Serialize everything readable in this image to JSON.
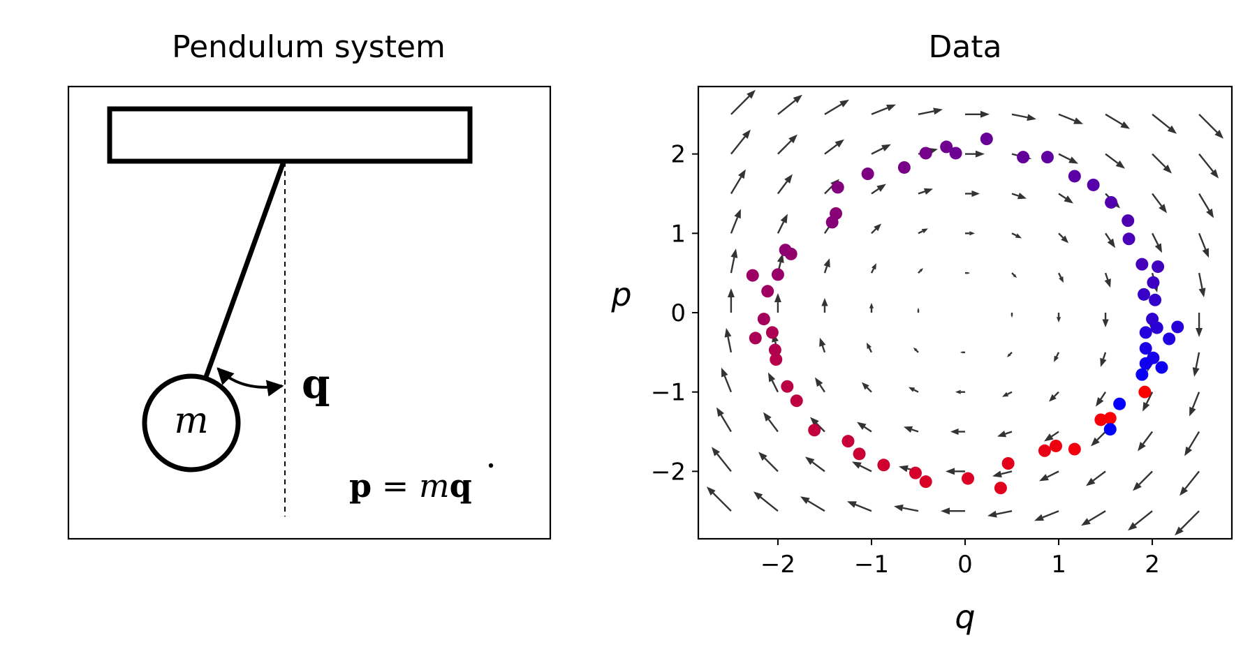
{
  "left_panel": {
    "title": "Pendulum system",
    "mass_label": "m",
    "angle_label": "q",
    "equation": {
      "lhs": "p",
      "eq": " = ",
      "m": "m",
      "q": "q"
    }
  },
  "chart_data": {
    "type": "scatter",
    "title": "Data",
    "xlabel": "q",
    "ylabel": "p",
    "xlim": [
      -2.85,
      2.85
    ],
    "ylim": [
      -2.85,
      2.85
    ],
    "xticks": [
      -2,
      -1,
      0,
      1,
      2
    ],
    "yticks": [
      -2,
      -1,
      0,
      1,
      2
    ],
    "xtick_labels": [
      "−2",
      "−1",
      "0",
      "1",
      "2"
    ],
    "ytick_labels": [
      "−2",
      "−1",
      "0",
      "1",
      "2"
    ],
    "grid": false,
    "colors": {
      "start": "#ff0000",
      "end": "#0000ff",
      "arrow": "#333333"
    },
    "quiver": {
      "description": "Hamiltonian vector field (dq/dt = p, dp/dt = -q) on a 11x11 grid",
      "q": [
        -2.5,
        -2.0,
        -1.5,
        -1.0,
        -0.5,
        0.0,
        0.5,
        1.0,
        1.5,
        2.0,
        2.5
      ],
      "p": [
        -2.5,
        -2.0,
        -1.5,
        -1.0,
        -0.5,
        0.0,
        0.5,
        1.0,
        1.5,
        2.0,
        2.5
      ]
    },
    "points": [
      [
        1.92,
        -1.0,
        0.0
      ],
      [
        1.55,
        -1.33,
        0.03
      ],
      [
        1.45,
        -1.35,
        0.06
      ],
      [
        1.17,
        -1.72,
        0.09
      ],
      [
        0.97,
        -1.68,
        0.12
      ],
      [
        0.85,
        -1.74,
        0.15
      ],
      [
        0.46,
        -1.9,
        0.18
      ],
      [
        0.38,
        -2.21,
        0.21
      ],
      [
        0.03,
        -2.09,
        0.24
      ],
      [
        -0.42,
        -2.13,
        0.27
      ],
      [
        -0.53,
        -2.02,
        0.3
      ],
      [
        -0.87,
        -1.92,
        0.33
      ],
      [
        -1.13,
        -1.78,
        0.36
      ],
      [
        -1.25,
        -1.62,
        0.39
      ],
      [
        -1.61,
        -1.48,
        0.42
      ],
      [
        -1.8,
        -1.11,
        0.45
      ],
      [
        -1.9,
        -0.93,
        0.48
      ],
      [
        -2.02,
        -0.59,
        0.51
      ],
      [
        -2.03,
        -0.47,
        0.54
      ],
      [
        -2.06,
        -0.25,
        0.57
      ],
      [
        -2.24,
        -0.32,
        0.6
      ],
      [
        -2.15,
        -0.08,
        0.63
      ],
      [
        -2.11,
        0.27,
        0.66
      ],
      [
        -2.27,
        0.47,
        0.69
      ],
      [
        -2.0,
        0.48,
        0.72
      ],
      [
        -1.86,
        0.74,
        0.75
      ],
      [
        -1.92,
        0.79,
        0.78
      ],
      [
        -1.38,
        1.25,
        0.81
      ],
      [
        -1.42,
        1.14,
        0.84
      ],
      [
        -1.36,
        1.58,
        0.87
      ],
      [
        -1.04,
        1.75,
        0.9
      ],
      [
        -0.65,
        1.83,
        0.93
      ],
      [
        -0.42,
        2.01,
        0.96
      ],
      [
        -0.2,
        2.09,
        0.99
      ],
      [
        -0.1,
        2.01,
        1.02
      ],
      [
        0.23,
        2.19,
        1.05
      ],
      [
        0.62,
        1.96,
        1.08
      ],
      [
        0.88,
        1.96,
        1.11
      ],
      [
        1.17,
        1.72,
        1.14
      ],
      [
        1.37,
        1.61,
        1.17
      ],
      [
        1.56,
        1.39,
        1.2
      ],
      [
        1.74,
        1.16,
        1.23
      ],
      [
        1.75,
        0.93,
        1.26
      ],
      [
        1.89,
        0.61,
        1.29
      ],
      [
        2.06,
        0.58,
        1.32
      ],
      [
        2.01,
        0.38,
        1.35
      ],
      [
        1.91,
        0.23,
        1.38
      ],
      [
        2.03,
        0.16,
        1.41
      ],
      [
        2.0,
        -0.08,
        1.44
      ],
      [
        2.05,
        -0.19,
        1.47
      ],
      [
        2.27,
        -0.18,
        1.5
      ],
      [
        1.93,
        -0.25,
        1.53
      ],
      [
        2.18,
        -0.33,
        1.56
      ],
      [
        1.93,
        -0.45,
        1.59
      ],
      [
        2.01,
        -0.57,
        1.62
      ],
      [
        1.93,
        -0.64,
        1.65
      ],
      [
        2.1,
        -0.69,
        1.68
      ],
      [
        1.89,
        -0.78,
        1.71
      ],
      [
        1.65,
        -1.15,
        1.74
      ],
      [
        1.55,
        -1.47,
        1.77
      ]
    ]
  }
}
